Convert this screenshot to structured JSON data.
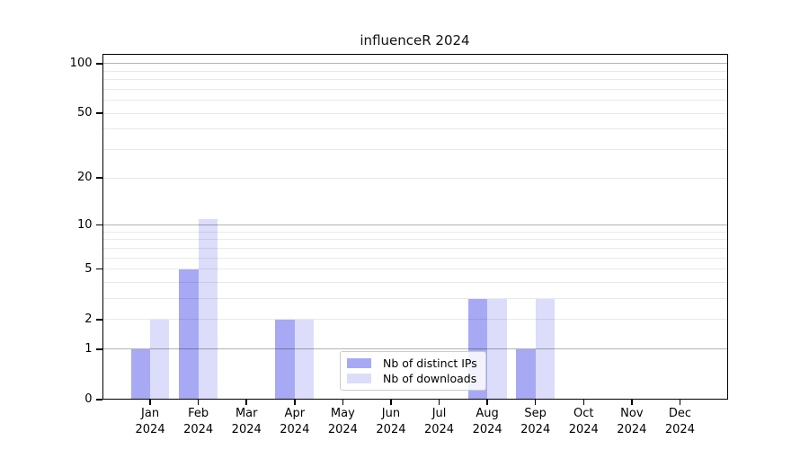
{
  "title": "influenceR 2024",
  "legend": {
    "items": [
      {
        "label": "Nb of distinct IPs",
        "color": "#a7a9f5"
      },
      {
        "label": "Nb of downloads",
        "color": "#dcddfb"
      }
    ]
  },
  "chart_data": {
    "type": "bar",
    "title": "influenceR 2024",
    "xlabel": "",
    "ylabel": "",
    "x_axis": {
      "categories": [
        "Jan",
        "Feb",
        "Mar",
        "Apr",
        "May",
        "Jun",
        "Jul",
        "Aug",
        "Sep",
        "Oct",
        "Nov",
        "Dec"
      ],
      "year": "2024"
    },
    "y_axis": {
      "scale": "log1p",
      "ticks": [
        0,
        1,
        2,
        5,
        10,
        20,
        50,
        100
      ],
      "max": 114.4,
      "major_gridlines": [
        1,
        10,
        100
      ],
      "minor_gridlines": [
        2,
        3,
        4,
        5,
        6,
        7,
        8,
        9,
        20,
        30,
        40,
        50,
        60,
        70,
        80,
        90
      ]
    },
    "series": [
      {
        "name": "Nb of distinct IPs",
        "color": "#a7a9f5",
        "values": [
          1,
          5,
          0,
          2,
          0,
          0,
          0,
          3,
          1,
          0,
          0,
          0
        ]
      },
      {
        "name": "Nb of downloads",
        "color": "#dcddfb",
        "values": [
          2,
          11,
          0,
          2,
          0,
          0,
          0,
          3,
          3,
          0,
          0,
          0
        ]
      }
    ],
    "grid": true,
    "legend_position": "lower center",
    "colors": {
      "major_gridline": "rgba(0,0,0,0.30)",
      "minor_gridline": "rgba(0,0,0,0.085)",
      "axis": "#000000"
    }
  }
}
